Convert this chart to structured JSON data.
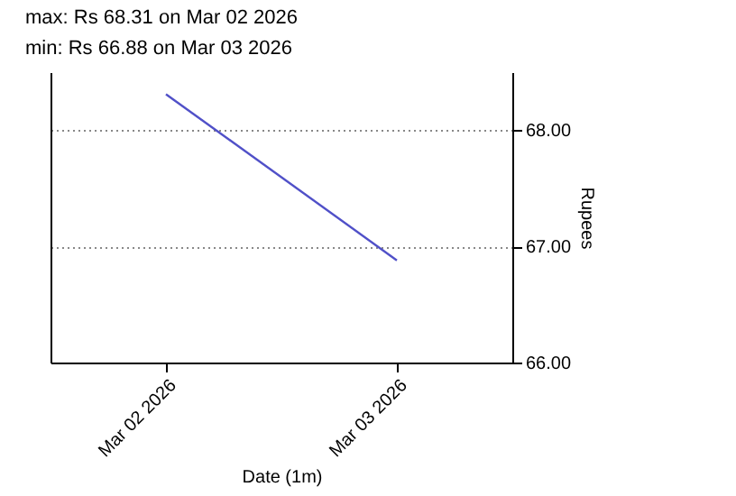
{
  "chart_data": {
    "type": "line",
    "title": "max: Rs 68.31 on Mar 02 2026",
    "subtitle": "min: Rs 66.88 on Mar 03 2026",
    "xlabel": "Date (1m)",
    "ylabel": "Rupees",
    "x": [
      "2026-03-02",
      "2026-03-03"
    ],
    "series": [
      {
        "color": "#5050c8",
        "values": [
          68.31,
          66.88
        ]
      }
    ],
    "xlim": [
      "2026-03-01T12:00",
      "2026-03-03T12:00"
    ],
    "xticks": [
      {
        "value": "2026-03-02",
        "label": "Mar 02 2026"
      },
      {
        "value": "2026-03-03",
        "label": "Mar 03 2026"
      }
    ],
    "ylim": [
      66,
      68.5
    ],
    "yticks": [
      {
        "value": 66,
        "label": "66.00"
      },
      {
        "value": 67,
        "label": "67.00"
      },
      {
        "value": 68,
        "label": "68.00"
      }
    ],
    "grid": "y",
    "line_style": "solid"
  }
}
